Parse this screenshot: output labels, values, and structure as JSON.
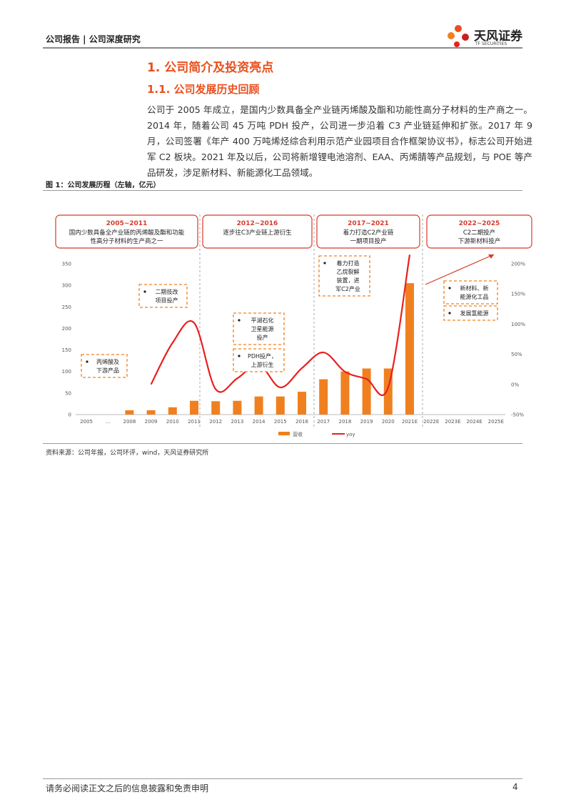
{
  "header": {
    "left": "公司报告 | 公司深度研究",
    "logo": "天风证券",
    "logo_sub": "TF SECURITIES"
  },
  "section": {
    "heading": "1. 公司简介及投资亮点",
    "subheading": "1.1. 公司发展历史回顾",
    "paragraph": "公司于 2005 年成立，是国内少数具备全产业链丙烯酸及酯和功能性高分子材料的生产商之一。2014 年，随着公司 45 万吨 PDH 投产，公司进一步沿着 C3 产业链延伸和扩张。2017 年 9 月，公司签署《年产 400 万吨烯烃综合利用示范产业园项目合作框架协议书》，标志公司开始进军 C2 板块。2021 年及以后，公司将新增锂电池溶剂、EAA、丙烯腈等产品规划，与 POE 等产品研发，涉足新材料、新能源化工品领域。",
    "figure_caption": "图 1：公司发展历程（左轴，亿元）",
    "source": "资料来源：公司年报，公司环评，wind，天风证券研究所"
  },
  "chart_data": {
    "type": "bar",
    "categories": [
      "2005",
      "...",
      "2008",
      "2009",
      "2010",
      "2011",
      "2012",
      "2013",
      "2014",
      "2015",
      "2016",
      "2017",
      "2018",
      "2019",
      "2020",
      "2021E",
      "2022E",
      "2023E",
      "2024E",
      "2025E"
    ],
    "series": [
      {
        "name": "营收",
        "color": "#f0801f",
        "values": [
          null,
          null,
          10,
          10,
          17,
          32,
          31,
          32,
          42,
          42,
          53,
          82,
          100,
          107,
          107,
          305,
          null,
          null,
          null,
          null
        ]
      },
      {
        "name": "yoy",
        "color": "#e8201e",
        "type": "line",
        "axis": "y2",
        "values": [
          null,
          null,
          null,
          0,
          69,
          102,
          -8,
          10,
          33,
          -5,
          27,
          53,
          21,
          9,
          -5,
          215,
          null,
          null,
          null,
          null
        ]
      }
    ],
    "ylim": [
      0,
      350
    ],
    "yticks": [
      0,
      50,
      100,
      150,
      200,
      250,
      300,
      350
    ],
    "y2lim": [
      -50,
      200
    ],
    "y2ticks": [
      {
        "value": -50,
        "label": "-50%"
      },
      {
        "value": 0,
        "label": "0%"
      },
      {
        "value": 50,
        "label": "50%"
      },
      {
        "value": 100,
        "label": "100%"
      },
      {
        "value": 150,
        "label": "150%"
      },
      {
        "value": 200,
        "label": "200%"
      }
    ],
    "periods": [
      {
        "title": "2005~2011",
        "lines": [
          "国内少数具备全产业链的丙烯酸及酯和功能",
          "性高分子材料的生产商之一"
        ]
      },
      {
        "title": "2012~2016",
        "lines": [
          "逐步往C3产业链上游衍生"
        ]
      },
      {
        "title": "2017~2021",
        "lines": [
          "着力打造C2产业链",
          "一期项目投产"
        ]
      },
      {
        "title": "2022~2025",
        "lines": [
          "C2二期投产",
          "下游新材料投产"
        ]
      }
    ],
    "annotations": [
      {
        "lines": [
          "丙烯酸及",
          "下游产品"
        ]
      },
      {
        "lines": [
          "二期技改",
          "项目投产"
        ]
      },
      {
        "lines": [
          "平湖石化",
          "卫星能源",
          "投产"
        ]
      },
      {
        "lines": [
          "PDH投产，",
          "上游衍生"
        ]
      },
      {
        "lines": [
          "着力打造",
          "乙烷裂解",
          "装置，进",
          "军C2产业"
        ]
      },
      {
        "lines": [
          "新材料、新",
          "能源化工品"
        ]
      },
      {
        "lines": [
          "发展氢能源"
        ]
      }
    ]
  },
  "footer": {
    "disclaimer": "请务必阅读正文之后的信息披露和免责申明",
    "page": "4"
  }
}
